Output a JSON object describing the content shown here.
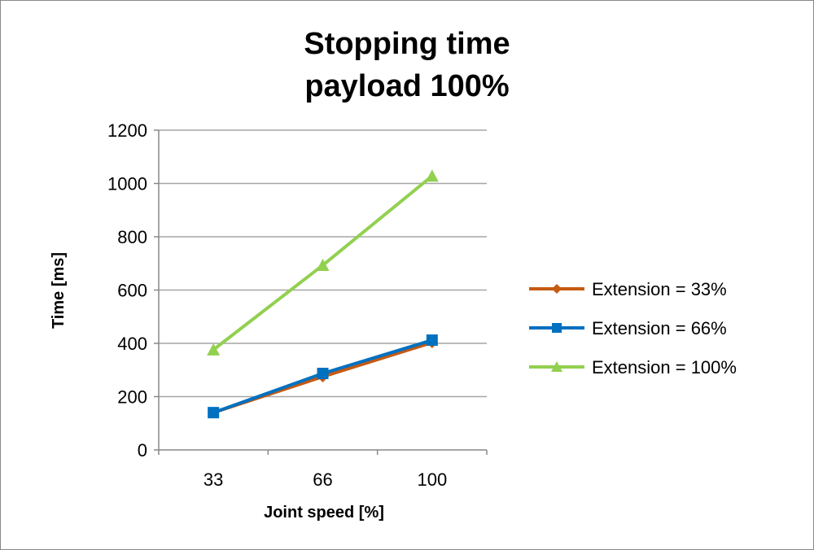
{
  "chart_data": {
    "type": "line",
    "title": "Stopping time",
    "subtitle": "payload 100%",
    "xlabel": "Joint speed [%]",
    "ylabel": "Time [ms]",
    "categories": [
      "33",
      "66",
      "100"
    ],
    "ylim": [
      0,
      1200
    ],
    "yticks": [
      0,
      200,
      400,
      600,
      800,
      1000,
      1200
    ],
    "grid": true,
    "legend": "right",
    "series": [
      {
        "name": "Extension = 33%",
        "values": [
          140,
          275,
          403
        ],
        "color": "#c55a11",
        "marker": "diamond"
      },
      {
        "name": "Extension = 66%",
        "values": [
          140,
          287,
          412
        ],
        "color": "#0070c0",
        "marker": "square"
      },
      {
        "name": "Extension = 100%",
        "values": [
          376,
          693,
          1028
        ],
        "color": "#92d050",
        "marker": "triangle"
      }
    ]
  }
}
